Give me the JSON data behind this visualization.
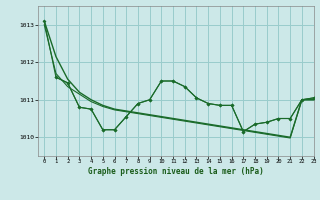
{
  "background_color": "#cce8e8",
  "grid_color": "#99cccc",
  "line_color": "#1a6b2a",
  "title": "Graphe pression niveau de la mer (hPa)",
  "xlim": [
    -0.5,
    23
  ],
  "ylim": [
    1009.5,
    1013.5
  ],
  "yticks": [
    1010,
    1011,
    1012,
    1013
  ],
  "xticks": [
    0,
    1,
    2,
    3,
    4,
    5,
    6,
    7,
    8,
    9,
    10,
    11,
    12,
    13,
    14,
    15,
    16,
    17,
    18,
    19,
    20,
    21,
    22,
    23
  ],
  "smooth_line": [
    1013.1,
    1012.15,
    1011.55,
    1011.2,
    1011.0,
    1010.85,
    1010.75,
    1010.7,
    1010.65,
    1010.6,
    1010.55,
    1010.5,
    1010.45,
    1010.4,
    1010.35,
    1010.3,
    1010.25,
    1010.2,
    1010.15,
    1010.1,
    1010.05,
    1010.0,
    1011.0,
    1011.0
  ],
  "smooth_line2": [
    1013.0,
    1011.7,
    1011.35,
    1011.15,
    1010.95,
    1010.82,
    1010.73,
    1010.68,
    1010.63,
    1010.58,
    1010.53,
    1010.48,
    1010.43,
    1010.38,
    1010.33,
    1010.28,
    1010.23,
    1010.18,
    1010.13,
    1010.08,
    1010.03,
    1009.98,
    1011.0,
    1011.0
  ],
  "jagged1": [
    1013.1,
    1011.6,
    1011.45,
    1010.8,
    1010.75,
    1010.2,
    1010.2,
    1010.55,
    1010.9,
    1011.0,
    1011.5,
    1011.5,
    1011.35,
    1011.05,
    1010.9,
    1010.85,
    1010.85,
    1010.15,
    1010.35,
    1010.4,
    1010.5,
    1010.5,
    1011.0,
    1011.05
  ],
  "jagged2_x": [
    1,
    2,
    3,
    4,
    5,
    6,
    7,
    8,
    9,
    10,
    11,
    12,
    13,
    14,
    15,
    16,
    17,
    18,
    19,
    20,
    21,
    22,
    23
  ],
  "jagged2": [
    1011.6,
    1011.45,
    1010.8,
    1010.75,
    1010.2,
    1010.2,
    1010.55,
    1010.9,
    1011.0,
    1011.5,
    1011.5,
    1011.35,
    1011.05,
    1010.9,
    1010.85,
    1010.85,
    1010.15,
    1010.35,
    1010.4,
    1010.5,
    1010.5,
    1011.0,
    1011.05
  ]
}
